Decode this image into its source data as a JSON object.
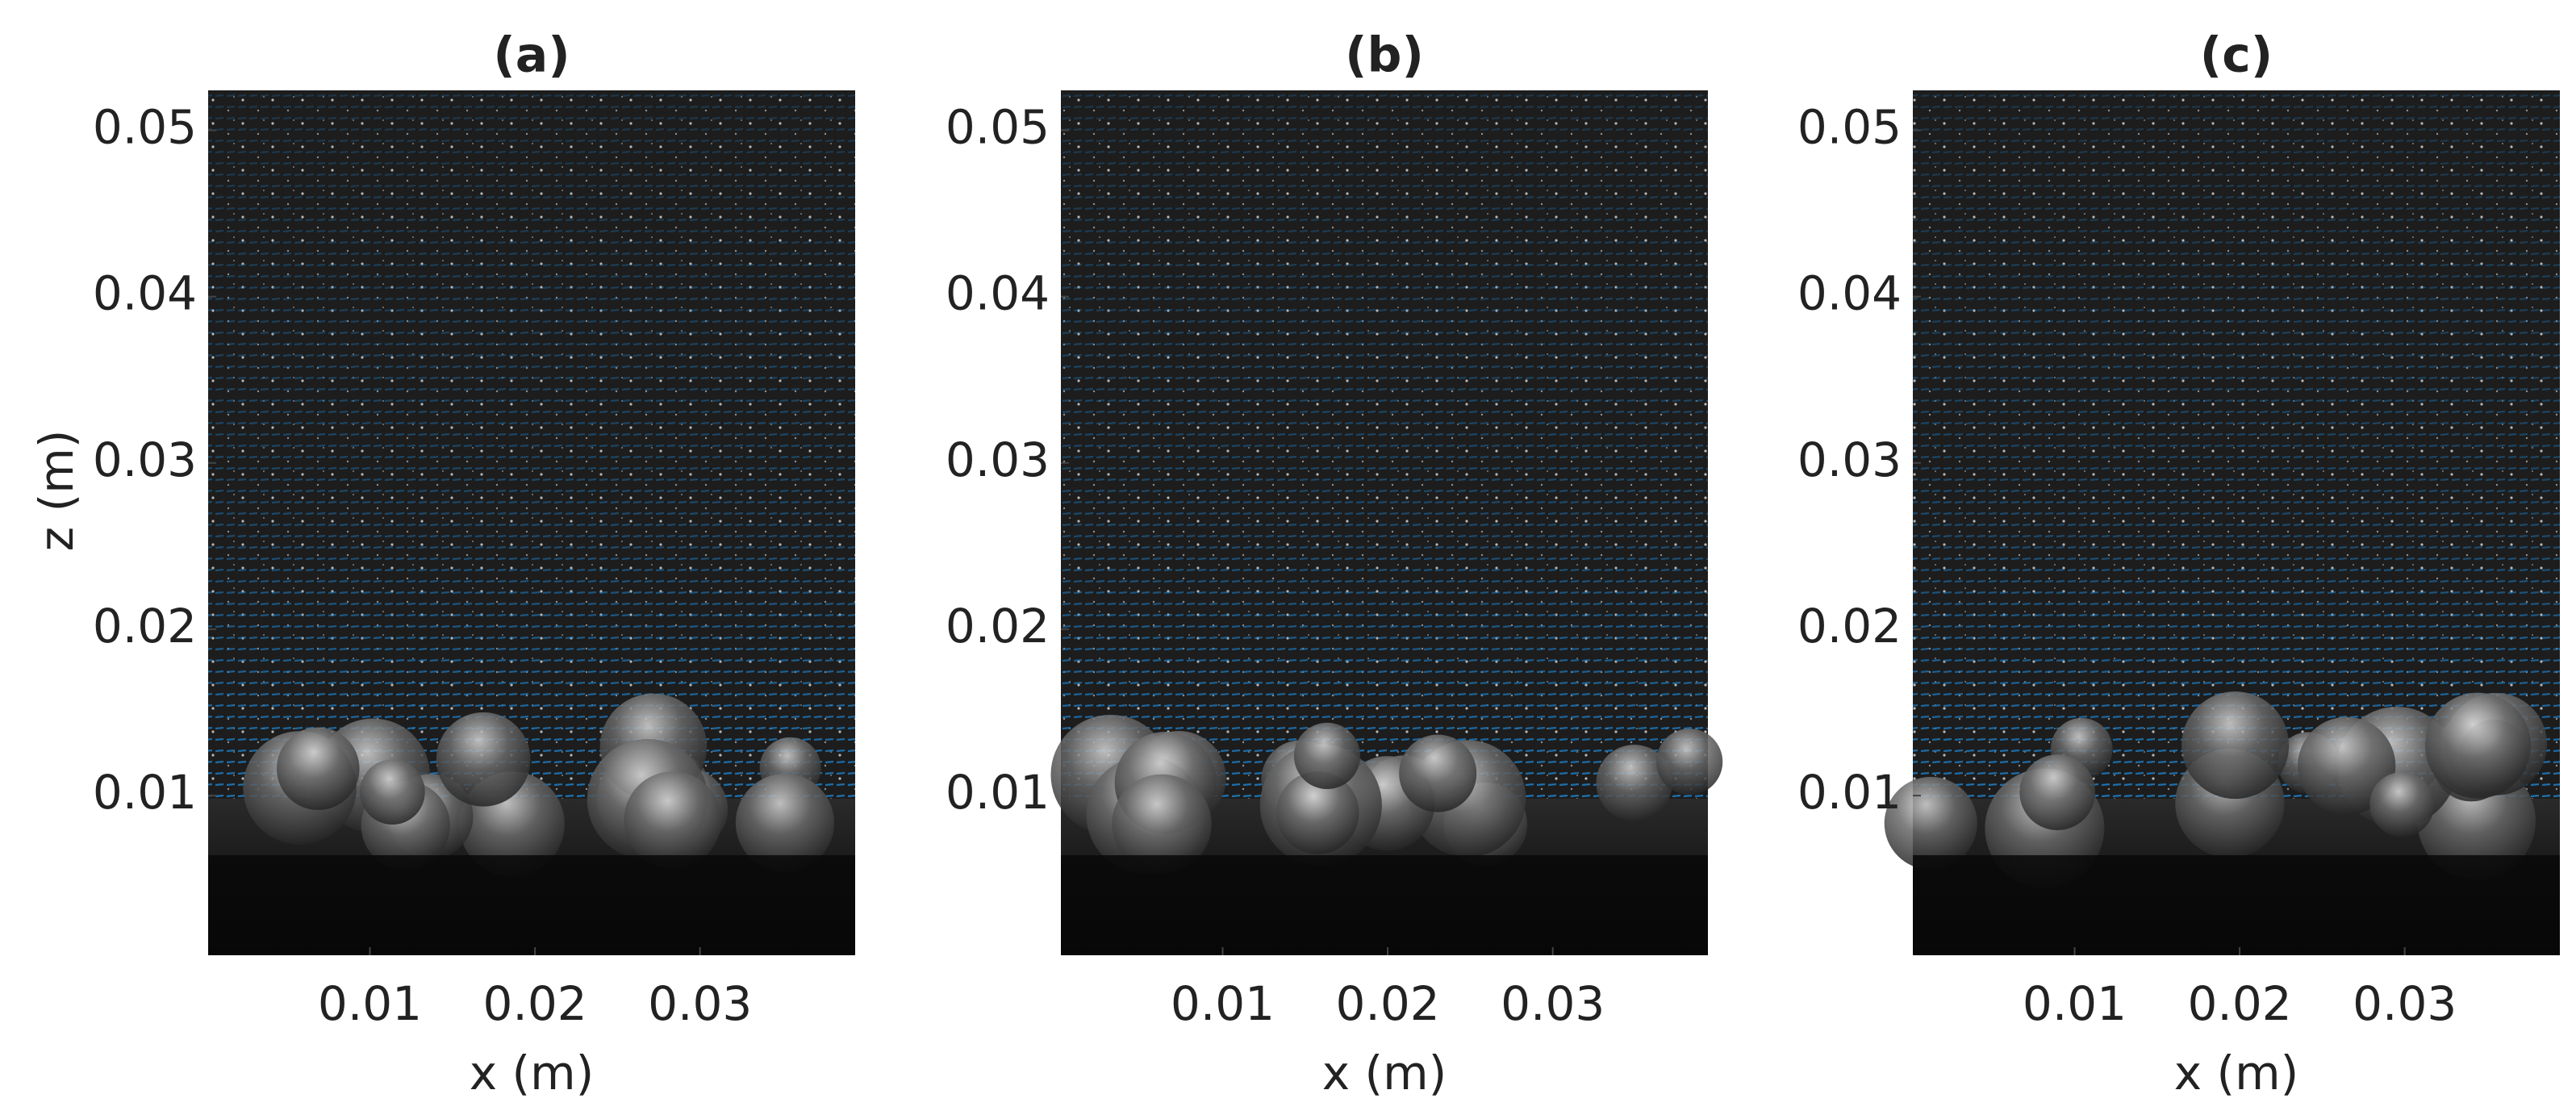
{
  "chart_data": [
    {
      "type": "image",
      "title": "(a)",
      "xlabel": "x (m)",
      "ylabel": "z (m)",
      "xlim": [
        0.0002,
        0.0394
      ],
      "ylim": [
        0.0004,
        0.0524
      ],
      "xticks": [
        0.01,
        0.02,
        0.03
      ],
      "yticks": [
        0.01,
        0.02,
        0.03,
        0.04,
        0.05
      ]
    },
    {
      "type": "image",
      "title": "(b)",
      "xlabel": "x (m)",
      "xlim": [
        0.0002,
        0.0394
      ],
      "ylim": [
        0.0004,
        0.0524
      ],
      "xticks": [
        0.01,
        0.02,
        0.03
      ],
      "yticks": [
        0.01,
        0.02,
        0.03,
        0.04,
        0.05
      ]
    },
    {
      "type": "image",
      "title": "(c)",
      "xlabel": "x (m)",
      "xlim": [
        0.0002,
        0.0394
      ],
      "ylim": [
        0.0004,
        0.0524
      ],
      "xticks": [
        0.01,
        0.02,
        0.03
      ],
      "yticks": [
        0.01,
        0.02,
        0.03,
        0.04,
        0.05
      ]
    }
  ]
}
